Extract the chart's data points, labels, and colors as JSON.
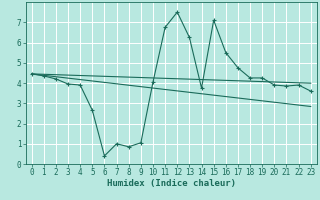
{
  "title": "",
  "xlabel": "Humidex (Indice chaleur)",
  "ylabel": "",
  "background_color": "#b8e8e0",
  "grid_color": "#ffffff",
  "line_color": "#1a6b5a",
  "x_values": [
    0,
    1,
    2,
    3,
    4,
    5,
    6,
    7,
    8,
    9,
    10,
    11,
    12,
    13,
    14,
    15,
    16,
    17,
    18,
    19,
    20,
    21,
    22,
    23
  ],
  "y_curve": [
    4.45,
    4.35,
    4.2,
    3.95,
    3.9,
    2.65,
    0.4,
    1.0,
    0.85,
    1.05,
    4.05,
    6.75,
    7.5,
    6.25,
    3.75,
    7.1,
    5.5,
    4.75,
    4.25,
    4.25,
    3.9,
    3.85,
    3.9,
    3.6
  ],
  "y_line1": [
    4.45,
    4.43,
    4.41,
    4.39,
    4.37,
    4.35,
    4.33,
    4.31,
    4.29,
    4.27,
    4.25,
    4.23,
    4.21,
    4.19,
    4.17,
    4.15,
    4.13,
    4.11,
    4.09,
    4.07,
    4.05,
    4.03,
    4.01,
    3.99
  ],
  "y_line2": [
    4.45,
    4.38,
    4.31,
    4.24,
    4.17,
    4.1,
    4.03,
    3.96,
    3.89,
    3.82,
    3.75,
    3.68,
    3.61,
    3.54,
    3.47,
    3.4,
    3.33,
    3.26,
    3.19,
    3.12,
    3.05,
    2.98,
    2.91,
    2.84
  ],
  "xlim": [
    -0.5,
    23.5
  ],
  "ylim": [
    0,
    8.0
  ],
  "yticks": [
    0,
    1,
    2,
    3,
    4,
    5,
    6,
    7
  ],
  "xticks": [
    0,
    1,
    2,
    3,
    4,
    5,
    6,
    7,
    8,
    9,
    10,
    11,
    12,
    13,
    14,
    15,
    16,
    17,
    18,
    19,
    20,
    21,
    22,
    23
  ],
  "tick_fontsize": 5.5,
  "label_fontsize": 6.5
}
